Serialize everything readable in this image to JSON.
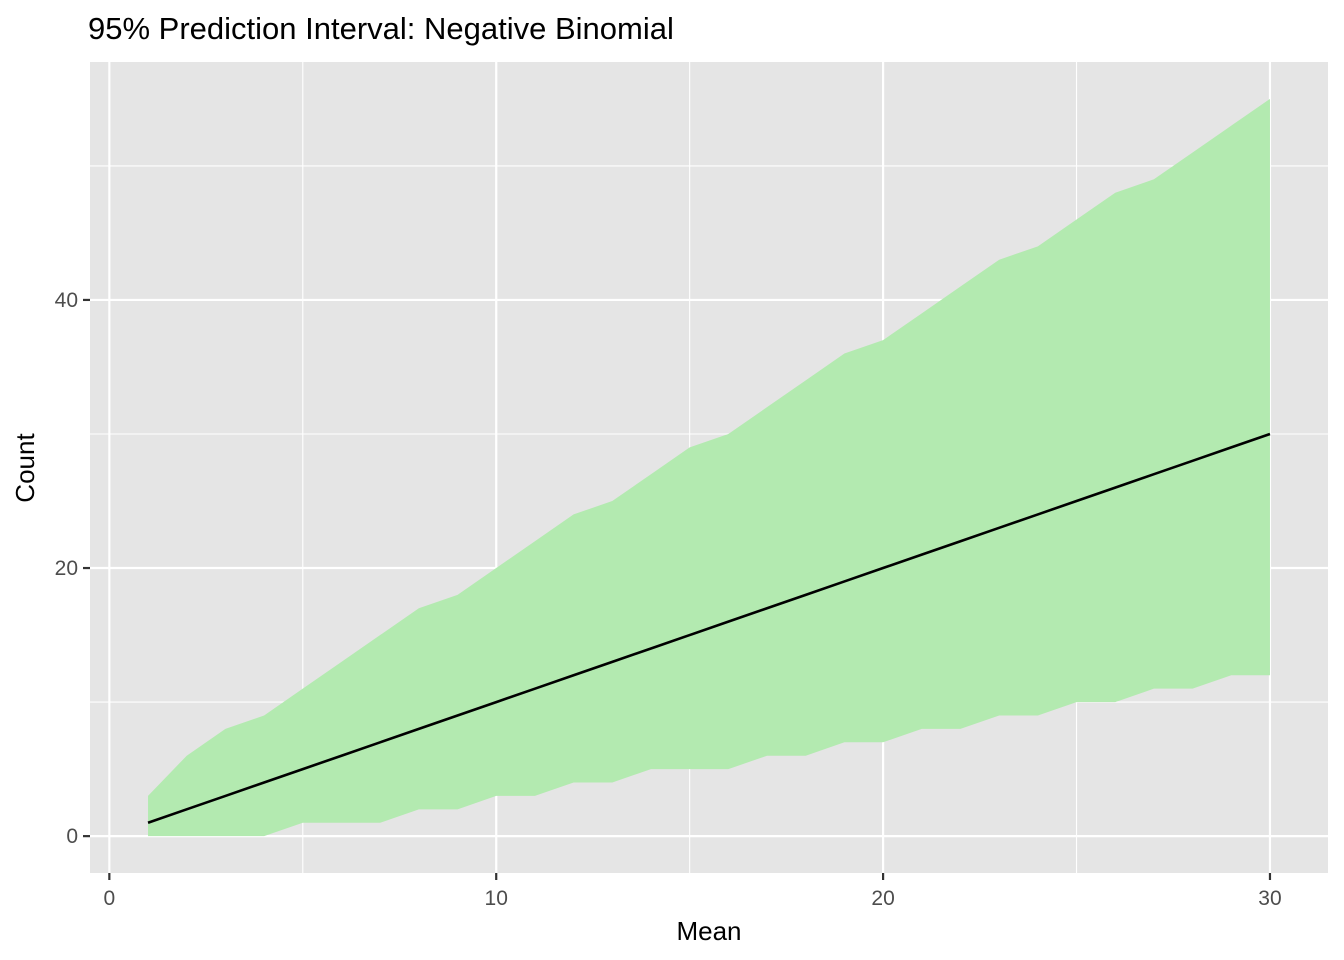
{
  "chart_data": {
    "type": "area",
    "title": "95% Prediction Interval: Negative Binomial",
    "xlabel": "Mean",
    "ylabel": "Count",
    "xlim": [
      -0.5,
      31.5
    ],
    "ylim": [
      -2.75,
      57.75
    ],
    "x_ticks": [
      0,
      10,
      20,
      30
    ],
    "x_tick_labels": [
      "0",
      "10",
      "20",
      "30"
    ],
    "y_ticks": [
      0,
      20,
      40
    ],
    "y_tick_labels": [
      "0",
      "20",
      "40"
    ],
    "x_minor": [
      5,
      15,
      25
    ],
    "y_minor": [
      10,
      30,
      50
    ],
    "grid": true,
    "legend": "none",
    "x": [
      1,
      2,
      3,
      4,
      5,
      6,
      7,
      8,
      9,
      10,
      11,
      12,
      13,
      14,
      15,
      16,
      17,
      18,
      19,
      20,
      21,
      22,
      23,
      24,
      25,
      26,
      27,
      28,
      29,
      30
    ],
    "series": [
      {
        "kind": "band",
        "lower": [
          0,
          0,
          0,
          0,
          1,
          1,
          1,
          2,
          2,
          3,
          3,
          4,
          4,
          5,
          5,
          5,
          6,
          6,
          7,
          7,
          8,
          8,
          9,
          9,
          10,
          10,
          11,
          11,
          12,
          12
        ],
        "upper": [
          3,
          6,
          8,
          9,
          11,
          13,
          15,
          17,
          18,
          20,
          22,
          24,
          25,
          27,
          29,
          30,
          32,
          34,
          36,
          37,
          39,
          41,
          43,
          44,
          46,
          48,
          49,
          51,
          53,
          55
        ],
        "color": "#b3eab0"
      },
      {
        "kind": "line",
        "values": [
          1,
          2,
          3,
          4,
          5,
          6,
          7,
          8,
          9,
          10,
          11,
          12,
          13,
          14,
          15,
          16,
          17,
          18,
          19,
          20,
          21,
          22,
          23,
          24,
          25,
          26,
          27,
          28,
          29,
          30
        ],
        "color": "#000000"
      }
    ],
    "panel_color": "#e5e5e5",
    "grid_color": "#ffffff",
    "tick_color": "#333333"
  }
}
